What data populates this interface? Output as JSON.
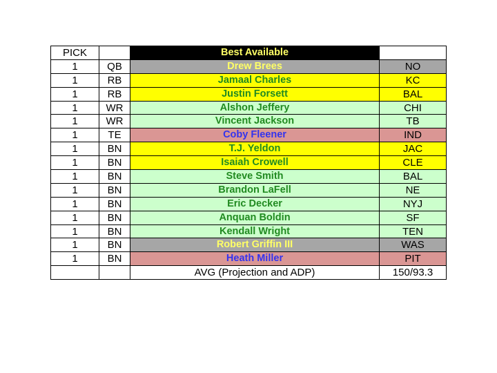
{
  "header": {
    "pick": "PICK",
    "pos": "",
    "title": "Best Available",
    "team": ""
  },
  "colors": {
    "header_bg": "#000000",
    "header_text": "#ffff66",
    "gray_bg": "#a6a6a6",
    "yellow_bg": "#ffff00",
    "green_bg": "#ccffcc",
    "red_bg": "#da9694",
    "yellow_text": "#ffff66",
    "green_text": "#218a21",
    "blue_text": "#3333ee"
  },
  "rows": [
    {
      "pick": "1",
      "pos": "QB",
      "name": "Drew Brees",
      "team": "NO",
      "style": "gray"
    },
    {
      "pick": "1",
      "pos": "RB",
      "name": "Jamaal Charles",
      "team": "KC",
      "style": "yellow"
    },
    {
      "pick": "1",
      "pos": "RB",
      "name": "Justin Forsett",
      "team": "BAL",
      "style": "yellow"
    },
    {
      "pick": "1",
      "pos": "WR",
      "name": "Alshon Jeffery",
      "team": "CHI",
      "style": "green"
    },
    {
      "pick": "1",
      "pos": "WR",
      "name": "Vincent Jackson",
      "team": "TB",
      "style": "green"
    },
    {
      "pick": "1",
      "pos": "TE",
      "name": "Coby Fleener",
      "team": "IND",
      "style": "red"
    },
    {
      "pick": "1",
      "pos": "BN",
      "name": "T.J. Yeldon",
      "team": "JAC",
      "style": "yellow"
    },
    {
      "pick": "1",
      "pos": "BN",
      "name": "Isaiah Crowell",
      "team": "CLE",
      "style": "yellow"
    },
    {
      "pick": "1",
      "pos": "BN",
      "name": "Steve Smith",
      "team": "BAL",
      "style": "green"
    },
    {
      "pick": "1",
      "pos": "BN",
      "name": "Brandon LaFell",
      "team": "NE",
      "style": "green"
    },
    {
      "pick": "1",
      "pos": "BN",
      "name": "Eric Decker",
      "team": "NYJ",
      "style": "green"
    },
    {
      "pick": "1",
      "pos": "BN",
      "name": "Anquan Boldin",
      "team": "SF",
      "style": "green"
    },
    {
      "pick": "1",
      "pos": "BN",
      "name": "Kendall Wright",
      "team": "TEN",
      "style": "green"
    },
    {
      "pick": "1",
      "pos": "BN",
      "name": "Robert Griffin III",
      "team": "WAS",
      "style": "gray"
    },
    {
      "pick": "1",
      "pos": "BN",
      "name": "Heath Miller",
      "team": "PIT",
      "style": "red"
    }
  ],
  "footer": {
    "pick": "",
    "pos": "",
    "label": "AVG (Projection and ADP)",
    "value": "150/93.3"
  }
}
